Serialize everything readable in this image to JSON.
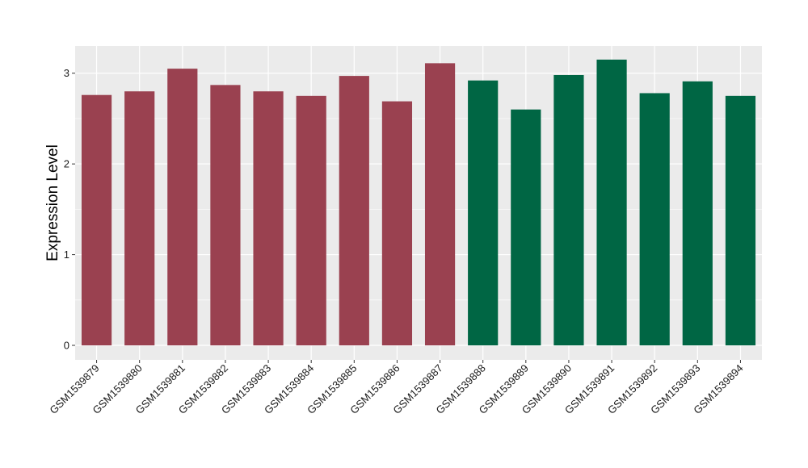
{
  "chart_data": {
    "type": "bar",
    "title": "",
    "xlabel": "",
    "ylabel": "Expression Level",
    "ylim": [
      -0.16,
      3.3
    ],
    "yticks": [
      0,
      1,
      2,
      3
    ],
    "ytick_labels": [
      "0",
      "1",
      "2",
      "3"
    ],
    "grid": true,
    "legend": "none",
    "panel_background": "#ebebeb",
    "grid_color": "#ffffff",
    "categories": [
      "GSM1539879",
      "GSM1539880",
      "GSM1539881",
      "GSM1539882",
      "GSM1539883",
      "GSM1539884",
      "GSM1539885",
      "GSM1539886",
      "GSM1539887",
      "GSM1539888",
      "GSM1539889",
      "GSM1539890",
      "GSM1539891",
      "GSM1539892",
      "GSM1539893",
      "GSM1539894"
    ],
    "values": [
      2.76,
      2.8,
      3.05,
      2.87,
      2.8,
      2.75,
      2.97,
      2.69,
      3.11,
      2.92,
      2.6,
      2.98,
      3.15,
      2.78,
      2.91,
      2.75
    ],
    "bar_colors": [
      "#9a4150",
      "#9a4150",
      "#9a4150",
      "#9a4150",
      "#9a4150",
      "#9a4150",
      "#9a4150",
      "#9a4150",
      "#9a4150",
      "#006644",
      "#006644",
      "#006644",
      "#006644",
      "#006644",
      "#006644",
      "#006644"
    ]
  }
}
